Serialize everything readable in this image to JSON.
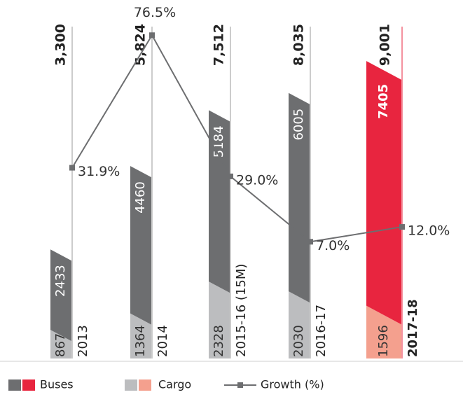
{
  "chart_data": {
    "type": "bar",
    "categories": [
      "2013",
      "2014",
      "2015-16 (15M)",
      "2016-17",
      "2017-18"
    ],
    "series": [
      {
        "name": "Buses",
        "color": "#6d6e70",
        "highlight_color": "#e8253f",
        "values": [
          2433,
          4460,
          5184,
          6005,
          7405
        ]
      },
      {
        "name": "Cargo",
        "color": "#bcbdbf",
        "highlight_color": "#f4a08e",
        "values": [
          867,
          1364,
          2328,
          2030,
          1596
        ]
      },
      {
        "name": "Growth (%)",
        "type": "line",
        "color": "#6d6e70",
        "values": [
          31.9,
          76.5,
          29.0,
          7.0,
          12.0
        ],
        "value_labels": [
          "31.9%",
          "76.5%",
          "29.0%",
          "7.0%",
          "12.0%"
        ]
      }
    ],
    "totals": [
      3300,
      5824,
      7512,
      8035,
      9001
    ],
    "total_labels": [
      "3,300",
      "5,824",
      "7,512",
      "8,035",
      "9,001"
    ]
  }
}
